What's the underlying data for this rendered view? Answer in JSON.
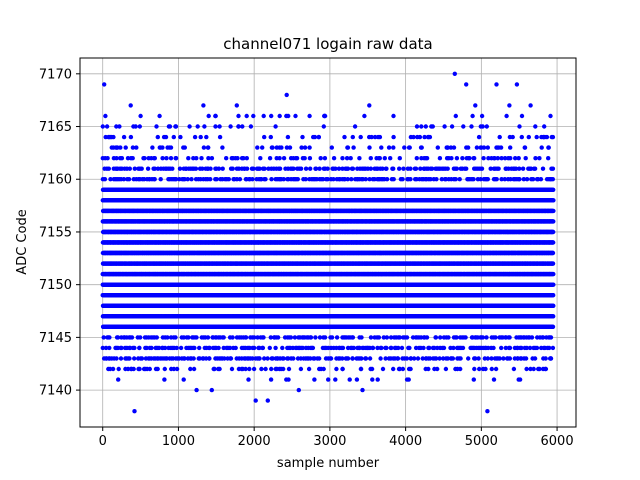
{
  "chart_data": {
    "type": "scatter",
    "title": "channel071 logain raw data",
    "xlabel": "sample number",
    "ylabel": "ADC Code",
    "xlim": [
      -300,
      6250
    ],
    "ylim": [
      7136.5,
      7171.5
    ],
    "xticks": [
      0,
      1000,
      2000,
      3000,
      4000,
      5000,
      6000
    ],
    "yticks": [
      7140,
      7145,
      7150,
      7155,
      7160,
      7165,
      7170
    ],
    "grid": true,
    "marker_color": "#0000ff",
    "series": [
      {
        "x_range": [
          0,
          5950
        ],
        "dense_band": [
          7142,
          7162
        ],
        "outliers": [
          {
            "x": 20,
            "y": 7169
          },
          {
            "x": 40,
            "y": 7164
          },
          {
            "x": 420,
            "y": 7138
          },
          {
            "x": 370,
            "y": 7167
          },
          {
            "x": 500,
            "y": 7166
          },
          {
            "x": 1070,
            "y": 7141
          },
          {
            "x": 1240,
            "y": 7140
          },
          {
            "x": 1330,
            "y": 7167
          },
          {
            "x": 1440,
            "y": 7140
          },
          {
            "x": 1770,
            "y": 7167
          },
          {
            "x": 2020,
            "y": 7139
          },
          {
            "x": 2180,
            "y": 7139
          },
          {
            "x": 2430,
            "y": 7168
          },
          {
            "x": 2590,
            "y": 7140
          },
          {
            "x": 3430,
            "y": 7140
          },
          {
            "x": 3520,
            "y": 7167
          },
          {
            "x": 3840,
            "y": 7166
          },
          {
            "x": 4020,
            "y": 7141
          },
          {
            "x": 4650,
            "y": 7170
          },
          {
            "x": 4800,
            "y": 7169
          },
          {
            "x": 4920,
            "y": 7167
          },
          {
            "x": 5080,
            "y": 7138
          },
          {
            "x": 5200,
            "y": 7169
          },
          {
            "x": 5470,
            "y": 7169
          },
          {
            "x": 5370,
            "y": 7167
          },
          {
            "x": 5650,
            "y": 7167
          },
          {
            "x": 5920,
            "y": 7143
          }
        ]
      }
    ]
  }
}
